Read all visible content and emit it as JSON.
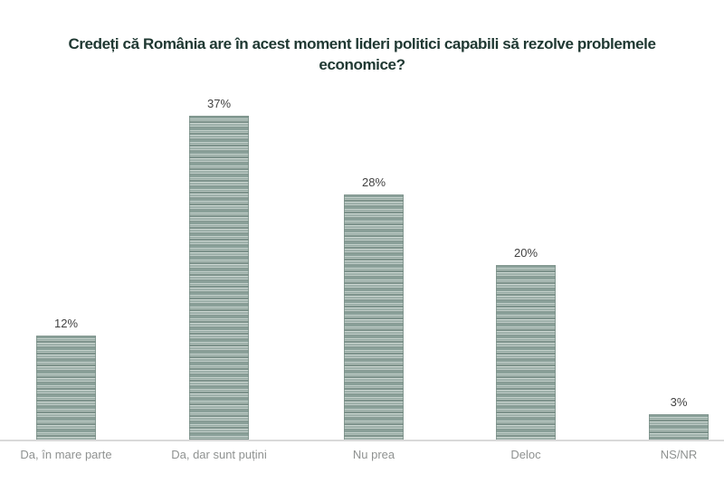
{
  "chart_data": {
    "type": "bar",
    "title": "Credeți că România are în acest moment lideri politici capabili să rezolve problemele economice?",
    "title_lines": [
      "Credeți că România are în acest moment lideri politici capabili să rezolve problemele",
      "economice?"
    ],
    "categories": [
      "Da, în mare parte",
      "Da, dar sunt puțini",
      "Nu prea",
      "Deloc",
      "NS/NR"
    ],
    "values": [
      12,
      37,
      28,
      20,
      3
    ],
    "value_labels": [
      "12%",
      "37%",
      "28%",
      "20%",
      "3%"
    ],
    "unit": "%",
    "xlabel": "",
    "ylabel": "",
    "ylim": [
      0,
      40
    ],
    "grid": false,
    "legend": null,
    "colors": {
      "background": "#ffffff",
      "title": "#1f3832",
      "bar_dark": "#7e938c",
      "bar_mid": "#9fb1ab",
      "bar_light": "#c6d2cd",
      "value_label": "#424242",
      "category_label": "#8f9291",
      "axis_line": "#d9d9d9"
    }
  }
}
